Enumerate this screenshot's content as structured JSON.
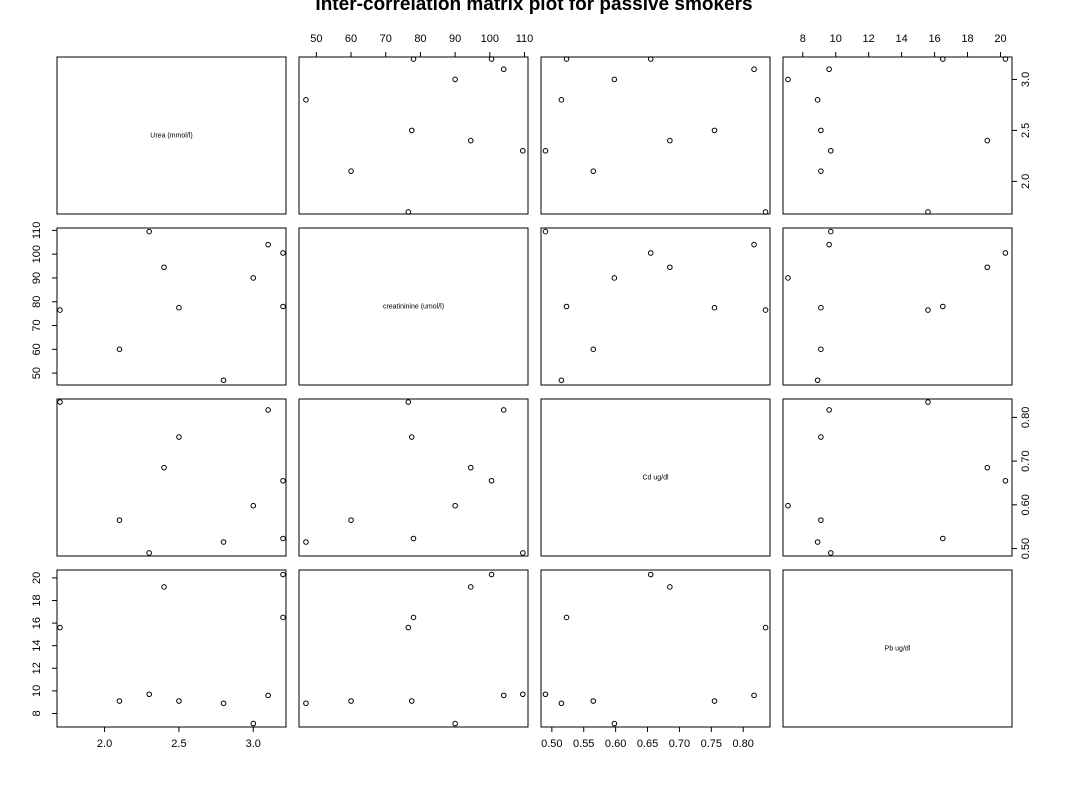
{
  "chart_data": {
    "type": "scatter",
    "title": "Inter-correlation matrix plot for passive smokers",
    "variables": [
      {
        "name": "Urea (mmol/l)",
        "range": [
          1.68,
          3.22
        ],
        "ticks": [
          2.0,
          2.5,
          3.0
        ],
        "tick_labels": [
          "2.0",
          "2.5",
          "3.0"
        ],
        "values": [
          1.7,
          2.1,
          2.3,
          2.4,
          2.5,
          2.8,
          3.0,
          3.1,
          3.2,
          3.2
        ]
      },
      {
        "name": "creatininine (umol/l)",
        "range": [
          45,
          111
        ],
        "ticks": [
          50,
          60,
          70,
          80,
          90,
          100,
          110
        ],
        "tick_labels": [
          "50",
          "60",
          "70",
          "80",
          "90",
          "100",
          "110"
        ],
        "values": [
          76.5,
          60.0,
          109.5,
          94.5,
          77.5,
          47.0,
          90.0,
          104.0,
          78.0,
          100.5
        ]
      },
      {
        "name": "Cd ug/dl",
        "range": [
          0.483,
          0.842
        ],
        "ticks": [
          0.5,
          0.55,
          0.6,
          0.65,
          0.7,
          0.75,
          0.8
        ],
        "tick_labels": [
          "0.50",
          "0.55",
          "0.60",
          "0.65",
          "0.70",
          "0.75",
          "0.80"
        ],
        "values": [
          0.835,
          0.565,
          0.49,
          0.685,
          0.755,
          0.515,
          0.598,
          0.817,
          0.523,
          0.655
        ]
      },
      {
        "name": "Pb ug/dl",
        "range": [
          6.8,
          20.7
        ],
        "ticks": [
          8,
          10,
          12,
          14,
          16,
          18,
          20
        ],
        "tick_labels": [
          "8",
          "10",
          "12",
          "14",
          "16",
          "18",
          "20"
        ],
        "values": [
          15.6,
          9.1,
          9.7,
          19.2,
          9.1,
          8.9,
          7.1,
          9.6,
          16.5,
          20.3
        ]
      }
    ],
    "layout_note": "lower and upper panels show pairwise scatter of the same 10 observations; diagonal shows variable names",
    "axes": {
      "bottom_columns": [
        0,
        2
      ],
      "top_columns": [
        1,
        3
      ],
      "left_rows": [
        1,
        3
      ],
      "right_rows": [
        0,
        2
      ]
    },
    "grid": false,
    "legend": "none"
  }
}
